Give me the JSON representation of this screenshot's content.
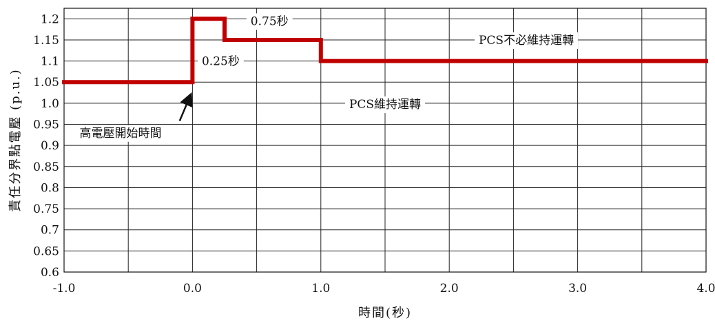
{
  "chart_data": {
    "type": "line",
    "xlabel": "時間(秒)",
    "ylabel": "責任分界點電壓 (p.u.)",
    "xlim": [
      -1.0,
      4.0
    ],
    "ylim": [
      0.6,
      1.225
    ],
    "x_ticks": [
      -1.0,
      0.0,
      1.0,
      2.0,
      3.0,
      4.0
    ],
    "x_tick_labels": [
      "-1.0",
      "0.0",
      "1.0",
      "2.0",
      "3.0",
      "4.0"
    ],
    "x_minor_grid_step": 0.5,
    "y_ticks": [
      0.6,
      0.65,
      0.7,
      0.75,
      0.8,
      0.85,
      0.9,
      0.95,
      1.0,
      1.05,
      1.1,
      1.15,
      1.2
    ],
    "y_tick_labels": [
      "0.6",
      "0.65",
      "0.7",
      "0.75",
      "0.8",
      "0.85",
      "0.9",
      "0.95",
      "1.0",
      "1.05",
      "1.1",
      "1.15",
      "1.2"
    ],
    "grid": true,
    "series": [
      {
        "color": "#c00000",
        "x": [
          -1.0,
          0.0,
          0.0,
          0.25,
          0.25,
          1.0,
          1.0,
          4.0
        ],
        "y": [
          1.05,
          1.05,
          1.2,
          1.2,
          1.15,
          1.15,
          1.1,
          1.1
        ]
      }
    ],
    "annotations": [
      {
        "text": "0.75秒",
        "x": 0.6,
        "y": 1.195
      },
      {
        "text": "0.25秒",
        "x": 0.22,
        "y": 1.1
      },
      {
        "text": "PCS不必維持運轉",
        "x": 2.6,
        "y": 1.15
      },
      {
        "text": "PCS維持運轉",
        "x": 1.5,
        "y": 0.998
      },
      {
        "text": "高電壓開始時間",
        "x": -0.56,
        "y": 0.93
      }
    ],
    "arrow": {
      "from": [
        -0.1,
        0.958
      ],
      "to": [
        0.0,
        1.025
      ]
    }
  }
}
